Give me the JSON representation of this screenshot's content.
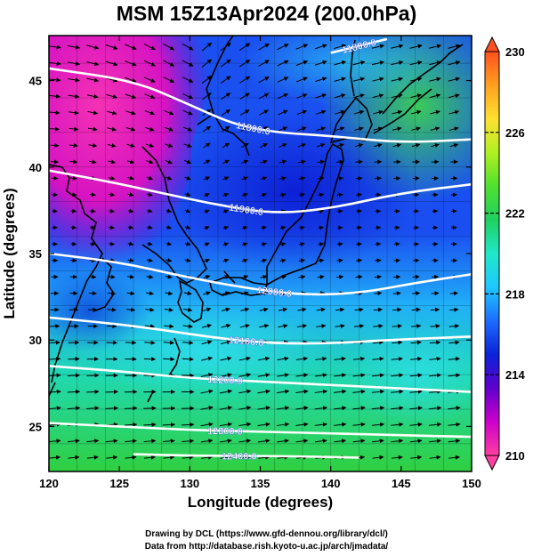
{
  "title": "MSM 15Z13Apr2024 (200.0hPa)",
  "credit_lines": [
    "Drawing by DCL (https://www.gfd-dennou.org/library/dcl/)",
    "Data from http://database.rish.kyoto-u.ac.jp/arch/jmadata/"
  ],
  "chart_data": {
    "type": "heatmap",
    "xlabel": "Longitude (degrees)",
    "ylabel": "Latitude  (degrees)",
    "xlim": [
      120,
      150
    ],
    "ylim": [
      22.4,
      47.6
    ],
    "x_ticks": [
      "120",
      "125",
      "130",
      "135",
      "140",
      "145",
      "150"
    ],
    "y_ticks": [
      "25",
      "30",
      "35",
      "40",
      "45"
    ],
    "colorbar": {
      "range": [
        210,
        230
      ],
      "tick_labels": [
        "210",
        "214",
        "218",
        "222",
        "226",
        "230"
      ],
      "colors": [
        "#ff3fa0",
        "#cc00cc",
        "#6000cc",
        "#0a22d8",
        "#1e6cff",
        "#1ec8ff",
        "#20e8c8",
        "#20d060",
        "#50e030",
        "#b0f020",
        "#ffe030",
        "#ffa020",
        "#ff5020"
      ]
    },
    "contours": [
      {
        "label": "11800.0",
        "points": [
          [
            140,
            46.6
          ],
          [
            144,
            47.4
          ]
        ]
      },
      {
        "label": "11800.0",
        "points": [
          [
            120,
            45.7
          ],
          [
            126,
            45.0
          ],
          [
            130,
            43.6
          ],
          [
            133,
            42.5
          ],
          [
            136,
            42.0
          ],
          [
            140,
            41.8
          ],
          [
            145,
            41.4
          ],
          [
            150,
            41.6
          ]
        ]
      },
      {
        "label": "11900.0",
        "points": [
          [
            120,
            39.8
          ],
          [
            124,
            39.2
          ],
          [
            128,
            38.5
          ],
          [
            132,
            37.8
          ],
          [
            136,
            37.3
          ],
          [
            140,
            37.6
          ],
          [
            145,
            38.5
          ],
          [
            150,
            39.0
          ]
        ]
      },
      {
        "label": "12000.0",
        "points": [
          [
            120,
            35.0
          ],
          [
            125,
            34.5
          ],
          [
            130,
            33.6
          ],
          [
            134,
            33.0
          ],
          [
            138,
            32.6
          ],
          [
            142,
            32.7
          ],
          [
            146,
            33.3
          ],
          [
            150,
            33.8
          ]
        ]
      },
      {
        "label": "12100.0",
        "points": [
          [
            120,
            31.3
          ],
          [
            124,
            31.0
          ],
          [
            128,
            30.6
          ],
          [
            132,
            30.1
          ],
          [
            136,
            29.8
          ],
          [
            140,
            29.8
          ],
          [
            144,
            30.0
          ],
          [
            150,
            30.2
          ]
        ]
      },
      {
        "label": "12200.0",
        "points": [
          [
            120,
            28.5
          ],
          [
            125,
            28.2
          ],
          [
            130,
            27.8
          ],
          [
            135,
            27.6
          ],
          [
            140,
            27.4
          ],
          [
            145,
            27.2
          ],
          [
            150,
            27.0
          ]
        ]
      },
      {
        "label": "12300.0",
        "points": [
          [
            120,
            25.2
          ],
          [
            125,
            25.0
          ],
          [
            130,
            24.8
          ],
          [
            135,
            24.7
          ],
          [
            140,
            24.6
          ],
          [
            145,
            24.5
          ],
          [
            150,
            24.4
          ]
        ]
      },
      {
        "label": "12400.0",
        "points": [
          [
            126,
            23.4
          ],
          [
            131,
            23.3
          ],
          [
            136,
            23.3
          ],
          [
            142,
            23.2
          ]
        ]
      }
    ]
  }
}
